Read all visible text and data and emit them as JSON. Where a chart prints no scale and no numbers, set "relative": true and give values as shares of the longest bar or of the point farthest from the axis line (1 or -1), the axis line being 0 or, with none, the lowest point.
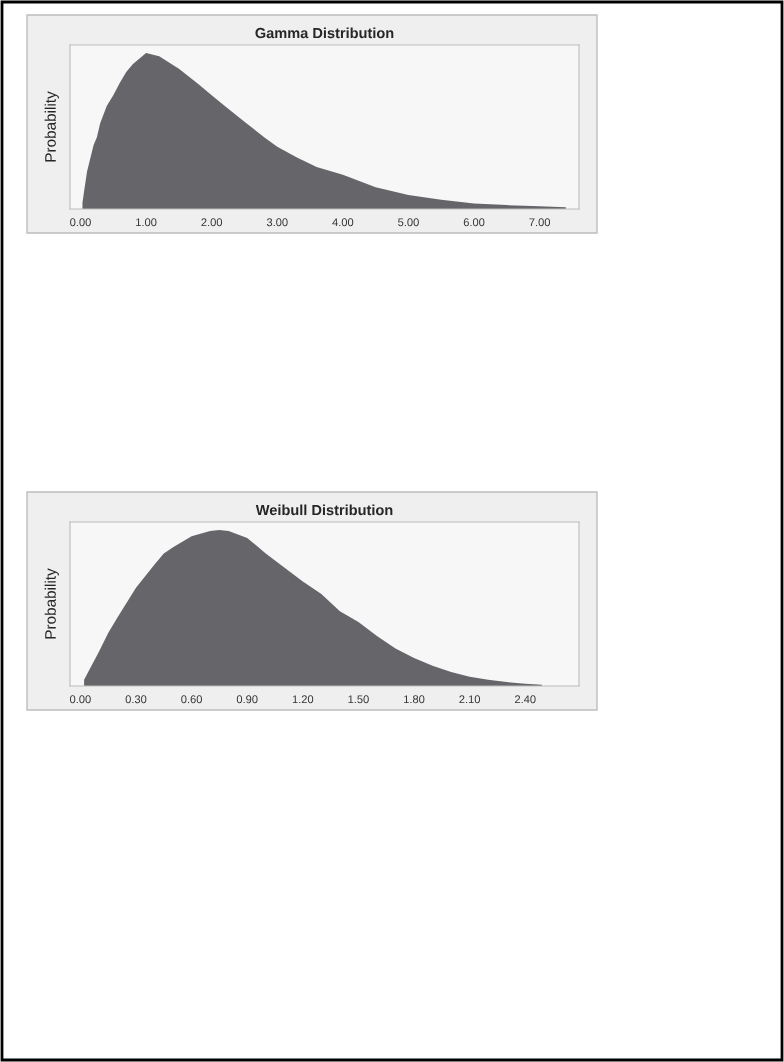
{
  "chart_data": [
    {
      "type": "area",
      "title": "Gamma Distribution",
      "ylabel": "Probability",
      "relative": true,
      "grid": false,
      "legend": false,
      "xlim": [
        -0.16,
        7.6
      ],
      "xticks": [
        {
          "value": 0,
          "label": "0.00"
        },
        {
          "value": 1,
          "label": "1.00"
        },
        {
          "value": 2,
          "label": "2.00"
        },
        {
          "value": 3,
          "label": "3.00"
        },
        {
          "value": 4,
          "label": "4.00"
        },
        {
          "value": 5,
          "label": "5.00"
        },
        {
          "value": 6,
          "label": "6.00"
        },
        {
          "value": 7,
          "label": "7.00"
        }
      ],
      "series": [
        {
          "color": "#66666a",
          "x": [
            0.03,
            0.05,
            0.1,
            0.2,
            0.25,
            0.3,
            0.4,
            0.5,
            0.6,
            0.7,
            0.8,
            1.0,
            1.2,
            1.5,
            1.8,
            2.0,
            2.2,
            2.5,
            2.8,
            3.0,
            3.3,
            3.6,
            4.0,
            4.5,
            5.0,
            5.5,
            6.0,
            6.5,
            7.0,
            7.4
          ],
          "values": [
            0.04,
            0.1,
            0.24,
            0.41,
            0.46,
            0.55,
            0.66,
            0.73,
            0.81,
            0.88,
            0.93,
            1.0,
            0.98,
            0.9,
            0.8,
            0.73,
            0.66,
            0.56,
            0.46,
            0.4,
            0.33,
            0.27,
            0.22,
            0.14,
            0.09,
            0.06,
            0.035,
            0.025,
            0.017,
            0.012
          ]
        }
      ]
    },
    {
      "type": "area",
      "title": "Weibull Distribution",
      "ylabel": "Probability",
      "relative": true,
      "grid": false,
      "legend": false,
      "xlim": [
        -0.056,
        2.69
      ],
      "xticks": [
        {
          "value": 0,
          "label": "0.00"
        },
        {
          "value": 0.3,
          "label": "0.30"
        },
        {
          "value": 0.6,
          "label": "0.60"
        },
        {
          "value": 0.9,
          "label": "0.90"
        },
        {
          "value": 1.2,
          "label": "1.20"
        },
        {
          "value": 1.5,
          "label": "1.50"
        },
        {
          "value": 1.8,
          "label": "1.80"
        },
        {
          "value": 2.1,
          "label": "2.10"
        },
        {
          "value": 2.4,
          "label": "2.40"
        }
      ],
      "series": [
        {
          "color": "#66666a",
          "x": [
            0.02,
            0.1,
            0.15,
            0.2,
            0.3,
            0.4,
            0.45,
            0.5,
            0.6,
            0.7,
            0.75,
            0.8,
            0.9,
            1.0,
            1.1,
            1.2,
            1.3,
            1.4,
            1.5,
            1.6,
            1.7,
            1.8,
            1.9,
            2.0,
            2.1,
            2.2,
            2.3,
            2.4,
            2.49
          ],
          "values": [
            0.04,
            0.22,
            0.34,
            0.44,
            0.63,
            0.78,
            0.85,
            0.89,
            0.96,
            0.995,
            1.0,
            0.995,
            0.95,
            0.85,
            0.76,
            0.67,
            0.59,
            0.48,
            0.41,
            0.32,
            0.24,
            0.18,
            0.13,
            0.09,
            0.06,
            0.04,
            0.025,
            0.015,
            0.008
          ]
        }
      ]
    }
  ]
}
